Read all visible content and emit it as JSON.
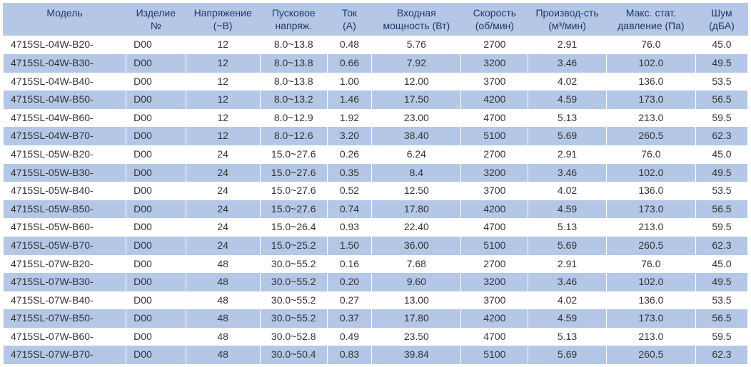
{
  "table": {
    "headers": [
      "Модель",
      "Изделие\n№",
      "Напряжение\n(~В)",
      "Пусковое\nнапряж.",
      "Ток\n(А)",
      "Входная\nмощность (Вт)",
      "Скорость\n(об/мин)",
      "Производ-сть\n(м³/мин)",
      "Макс. стат.\nдавление (Па)",
      "Шум\n(дБА)"
    ],
    "rows": [
      [
        "4715SL-04W-B20-",
        "D00",
        "12",
        "8.0~13.8",
        "0.48",
        "5.76",
        "2700",
        "2.91",
        "76.0",
        "45.0"
      ],
      [
        "4715SL-04W-B30-",
        "D00",
        "12",
        "8.0~13.8",
        "0.66",
        "7.92",
        "3200",
        "3.46",
        "102.0",
        "49.5"
      ],
      [
        "4715SL-04W-B40-",
        "D00",
        "12",
        "8.0~13.8",
        "1.00",
        "12.00",
        "3700",
        "4.02",
        "136.0",
        "53.5"
      ],
      [
        "4715SL-04W-B50-",
        "D00",
        "12",
        "8.0~13.2",
        "1.46",
        "17.50",
        "4200",
        "4.59",
        "173.0",
        "56.5"
      ],
      [
        "4715SL-04W-B60-",
        "D00",
        "12",
        "8.0~12.9",
        "1.92",
        "23.00",
        "4700",
        "5.13",
        "213.0",
        "59.5"
      ],
      [
        "4715SL-04W-B70-",
        "D00",
        "12",
        "8.0~12.6",
        "3.20",
        "38.40",
        "5100",
        "5.69",
        "260.5",
        "62.3"
      ],
      [
        "4715SL-05W-B20-",
        "D00",
        "24",
        "15.0~27.6",
        "0.26",
        "6.24",
        "2700",
        "2.91",
        "76.0",
        "45.0"
      ],
      [
        "4715SL-05W-B30-",
        "D00",
        "24",
        "15.0~27.6",
        "0.35",
        "8.4",
        "3200",
        "3.46",
        "102.0",
        "49.5"
      ],
      [
        "4715SL-05W-B40-",
        "D00",
        "24",
        "15.0~27.6",
        "0.52",
        "12.50",
        "3700",
        "4.02",
        "136.0",
        "53.5"
      ],
      [
        "4715SL-05W-B50-",
        "D00",
        "24",
        "15.0~27.6",
        "0.74",
        "17.80",
        "4200",
        "4.59",
        "173.0",
        "56.5"
      ],
      [
        "4715SL-05W-B60-",
        "D00",
        "24",
        "15.0~26.4",
        "0.93",
        "22.40",
        "4700",
        "5.13",
        "213.0",
        "59.5"
      ],
      [
        "4715SL-05W-B70-",
        "D00",
        "24",
        "15.0~25.2",
        "1.50",
        "36.00",
        "5100",
        "5.69",
        "260.5",
        "62.3"
      ],
      [
        "4715SL-07W-B20-",
        "D00",
        "48",
        "30.0~55.2",
        "0.16",
        "7.68",
        "2700",
        "2.91",
        "76.0",
        "45.0"
      ],
      [
        "4715SL-07W-B30-",
        "D00",
        "48",
        "30.0~55.2",
        "0.20",
        "9.60",
        "3200",
        "3.46",
        "102.0",
        "49.5"
      ],
      [
        "4715SL-07W-B40-",
        "D00",
        "48",
        "30.0~55.2",
        "0.27",
        "13.00",
        "3700",
        "4.02",
        "136.0",
        "53.5"
      ],
      [
        "4715SL-07W-B50-",
        "D00",
        "48",
        "30.0~55.2",
        "0.37",
        "17.80",
        "4200",
        "4.59",
        "173.0",
        "56.5"
      ],
      [
        "4715SL-07W-B60-",
        "D00",
        "48",
        "30.0~52.8",
        "0.49",
        "23.50",
        "4700",
        "5.13",
        "213.0",
        "59.5"
      ],
      [
        "4715SL-07W-B70-",
        "D00",
        "48",
        "30.0~50.4",
        "0.83",
        "39.84",
        "5100",
        "5.69",
        "260.5",
        "62.3"
      ]
    ],
    "column_classes": [
      "col-model",
      "col-product",
      "col-voltage",
      "col-start",
      "col-current",
      "col-power",
      "col-speed",
      "col-perf",
      "col-pressure",
      "col-noise"
    ],
    "header_bg": "#b4c7e7",
    "header_fg": "#1f3864",
    "row_odd_bg": "#ffffff",
    "row_even_bg": "#b4c7e7",
    "cell_fg": "#333333",
    "font_size": 14
  }
}
